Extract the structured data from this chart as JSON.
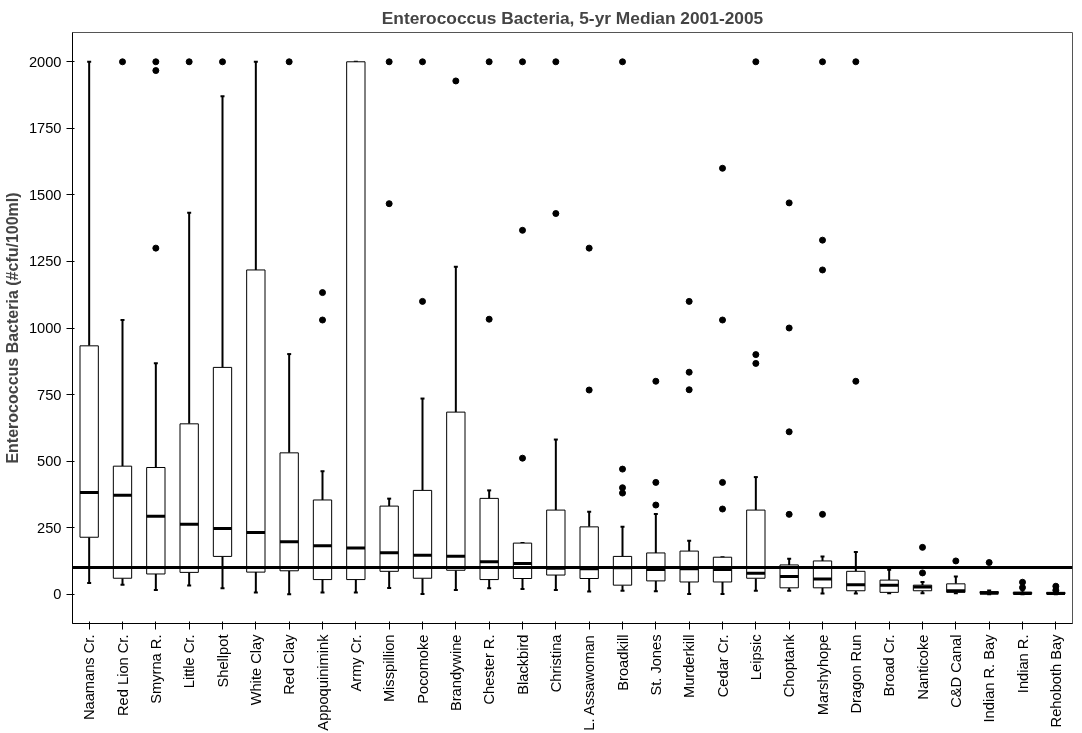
{
  "chart_data": {
    "type": "box",
    "title": "Enterococcus Bacteria, 5-yr Median 2001-2005",
    "ylabel": "Enterococcus Bacteria (#cfu/100ml)",
    "color": "#000000",
    "categories": [
      "Naamans Cr.",
      "Red Lion Cr.",
      "Smyrna R.",
      "Little Cr.",
      "Shellpot",
      "White Clay",
      "Red Clay",
      "Appoquinimink",
      "Army Cr.",
      "Misspillion",
      "Pocomoke",
      "Brandywine",
      "Chester R.",
      "Blackbird",
      "Christina",
      "L. Assawoman",
      "Broadkill",
      "St. Jones",
      "Murderkill",
      "Cedar Cr.",
      "Leipsic",
      "Choptank",
      "Marshyhope",
      "Dragon Run",
      "Broad Cr.",
      "Nanticoke",
      "C&D Canal",
      "Indian R. Bay",
      "Indian R.",
      "Rehoboth Bay"
    ],
    "boxes": [
      {
        "low": 42,
        "q1": 214,
        "median": 382,
        "q3": 933,
        "high": 2000
      },
      {
        "low": 36,
        "q1": 60,
        "median": 372,
        "q3": 481,
        "high": 1030,
        "outliers": [
          2000
        ]
      },
      {
        "low": 16,
        "q1": 76,
        "median": 293,
        "q3": 476,
        "high": 868,
        "outliers": [
          2000,
          1967,
          1300
        ]
      },
      {
        "low": 33,
        "q1": 82,
        "median": 263,
        "q3": 640,
        "high": 1433,
        "outliers": [
          2000
        ]
      },
      {
        "low": 22,
        "q1": 142,
        "median": 247,
        "q3": 852,
        "high": 1871,
        "outliers": [
          2000
        ]
      },
      {
        "low": 6,
        "q1": 83,
        "median": 232,
        "q3": 1218,
        "high": 2000
      },
      {
        "low": 0,
        "q1": 88,
        "median": 197,
        "q3": 531,
        "high": 902,
        "outliers": [
          2000
        ]
      },
      {
        "low": 6,
        "q1": 55,
        "median": 182,
        "q3": 354,
        "high": 462,
        "outliers": [
          1133,
          1030
        ]
      },
      {
        "low": 6,
        "q1": 55,
        "median": 174,
        "q3": 2000,
        "high": 2000
      },
      {
        "low": 23,
        "q1": 86,
        "median": 156,
        "q3": 331,
        "high": 359,
        "outliers": [
          2000,
          1467
        ]
      },
      {
        "low": 1,
        "q1": 60,
        "median": 146,
        "q3": 390,
        "high": 735,
        "outliers": [
          2000,
          1100
        ]
      },
      {
        "low": 16,
        "q1": 90,
        "median": 143,
        "q3": 684,
        "high": 1230,
        "outliers": [
          1928
        ]
      },
      {
        "low": 22,
        "q1": 55,
        "median": 122,
        "q3": 360,
        "high": 390,
        "outliers": [
          2000,
          1033
        ]
      },
      {
        "low": 20,
        "q1": 59,
        "median": 115,
        "q3": 192,
        "high": 192,
        "outliers": [
          2000,
          1367,
          511
        ]
      },
      {
        "low": 16,
        "q1": 72,
        "median": 98,
        "q3": 316,
        "high": 581,
        "outliers": [
          2000,
          1430
        ]
      },
      {
        "low": 10,
        "q1": 59,
        "median": 96,
        "q3": 253,
        "high": 310,
        "outliers": [
          1300,
          767
        ]
      },
      {
        "low": 13,
        "q1": 34,
        "median": 99,
        "q3": 142,
        "high": 253,
        "outliers": [
          2000,
          470,
          400,
          380
        ]
      },
      {
        "low": 11,
        "q1": 50,
        "median": 93,
        "q3": 155,
        "high": 301,
        "outliers": [
          800,
          420,
          335
        ]
      },
      {
        "low": 1,
        "q1": 46,
        "median": 96,
        "q3": 162,
        "high": 201,
        "outliers": [
          1100,
          834,
          768
        ]
      },
      {
        "low": 1,
        "q1": 46,
        "median": 93,
        "q3": 139,
        "high": 139,
        "outliers": [
          1600,
          1030,
          420,
          320
        ]
      },
      {
        "low": 13,
        "q1": 60,
        "median": 79,
        "q3": 316,
        "high": 440,
        "outliers": [
          2000,
          900,
          867
        ]
      },
      {
        "low": 13,
        "q1": 24,
        "median": 67,
        "q3": 110,
        "high": 133,
        "outliers": [
          1470,
          1000,
          610,
          300
        ]
      },
      {
        "low": 3,
        "q1": 24,
        "median": 57,
        "q3": 125,
        "high": 142,
        "outliers": [
          2000,
          1330,
          1218,
          300
        ]
      },
      {
        "low": 3,
        "q1": 13,
        "median": 36,
        "q3": 86,
        "high": 159,
        "outliers": [
          2000,
          800
        ]
      },
      {
        "low": 4,
        "q1": 7,
        "median": 34,
        "q3": 53,
        "high": 92
      },
      {
        "low": 4,
        "q1": 13,
        "median": 27,
        "q3": 34,
        "high": 46,
        "outliers": [
          176,
          80
        ]
      },
      {
        "low": 4,
        "q1": 7,
        "median": 13,
        "q3": 39,
        "high": 67,
        "outliers": [
          125
        ]
      },
      {
        "low": 0,
        "q1": 3,
        "median": 4,
        "q3": 10,
        "high": 14,
        "outliers": [
          119
        ]
      },
      {
        "low": 0,
        "q1": 1,
        "median": 3,
        "q3": 8,
        "high": 15,
        "outliers": [
          45,
          25
        ]
      },
      {
        "low": 0,
        "q1": 1,
        "median": 3,
        "q3": 7,
        "high": 10,
        "outliers": [
          30,
          15
        ]
      }
    ],
    "ref_lines": [
      {
        "axis": "y",
        "value": 100,
        "color": "#000000"
      }
    ],
    "ylim": [
      -110,
      2110
    ],
    "yticks": [
      0,
      250,
      500,
      750,
      1000,
      1250,
      1500,
      1750,
      2000
    ],
    "grid": false
  }
}
